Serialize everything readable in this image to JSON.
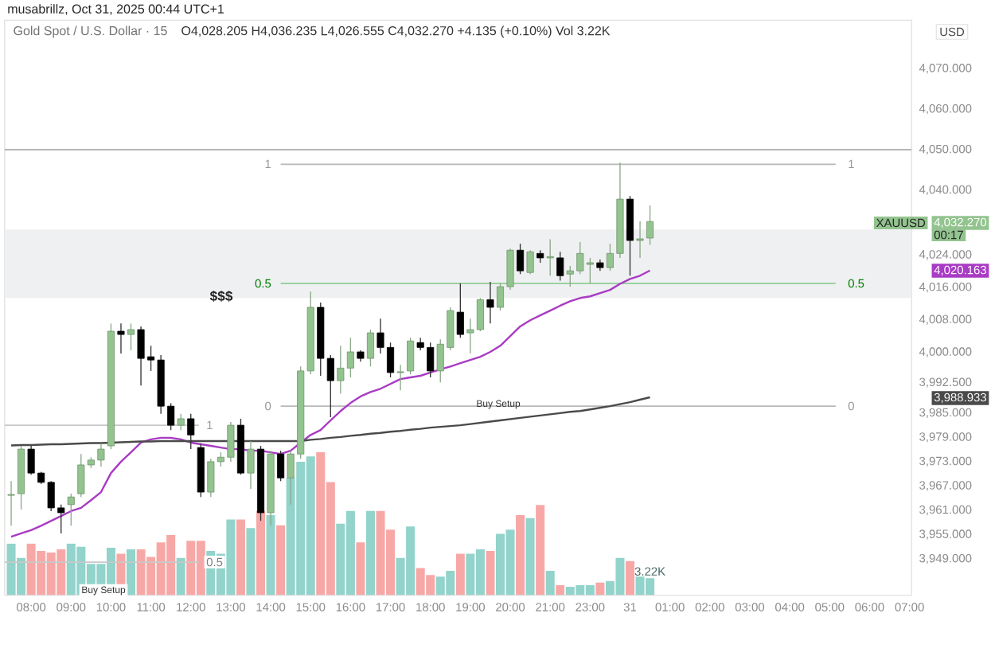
{
  "chart_data": [
    {
      "type": "candlestick",
      "title": "Gold Spot / U.S. Dollar · 15",
      "subtitle": "O4,028.205 H4,036.235 L4,026.555 C4,032.270 +4.135 (+0.10%) Vol 3.22K",
      "ylabel": "USD",
      "categories": [
        null,
        null,
        "08:00",
        null,
        null,
        null,
        "09:00",
        null,
        null,
        null,
        "10:00",
        null,
        null,
        null,
        "11:00",
        null,
        null,
        null,
        "12:00",
        null,
        null,
        null,
        "13:00",
        null,
        null,
        null,
        "14:00",
        null,
        null,
        null,
        "15:00",
        null,
        null,
        null,
        "16:00",
        null,
        null,
        null,
        "17:00",
        null,
        null,
        null,
        "18:00",
        null,
        null,
        null,
        "19:00",
        null,
        null,
        null,
        "20:00",
        null,
        null,
        null,
        "21:00",
        null,
        null,
        null,
        "23:00",
        null,
        null,
        null,
        "31",
        null,
        null,
        null,
        "01:00",
        null,
        null,
        null,
        "02:00",
        null,
        null,
        null,
        "03:00",
        null,
        null,
        null,
        "04:00",
        null,
        null,
        null,
        "05:00",
        null,
        null,
        null,
        "06:00",
        null,
        null,
        null,
        "07:00"
      ],
      "ohlc": [
        [
          3964.7,
          3968.2,
          3957.2,
          3964.9
        ],
        [
          3965.1,
          3976.9,
          3961.2,
          3976.1
        ],
        [
          3976.1,
          3976.9,
          3969.8,
          3970.2
        ],
        [
          3970.2,
          3970.5,
          3967.5,
          3967.9
        ],
        [
          3967.9,
          3968.2,
          3960.8,
          3961.6
        ],
        [
          3961.6,
          3962.4,
          3955.3,
          3960.4
        ],
        [
          3962.4,
          3965.1,
          3957.2,
          3964.3
        ],
        [
          3965.1,
          3974.9,
          3964.3,
          3972.2
        ],
        [
          3972.2,
          3974.1,
          3971.4,
          3973.4
        ],
        [
          3973.4,
          3977.5,
          3971.8,
          3976.1
        ],
        [
          3976.9,
          4007.1,
          3976.1,
          4005.2
        ],
        [
          4005.2,
          4007.1,
          3999.7,
          4004.4
        ],
        [
          4004.4,
          4007.1,
          4000.5,
          4005.6
        ],
        [
          4005.6,
          4006.4,
          3991.8,
          3998.5
        ],
        [
          3998.9,
          4001.6,
          3995.4,
          3998.1
        ],
        [
          3998.1,
          3999.3,
          3984.8,
          3986.7
        ],
        [
          3986.7,
          3987.4,
          3980.8,
          3982.0
        ],
        [
          3982.0,
          3984.8,
          3980.8,
          3983.6
        ],
        [
          3983.6,
          3984.8,
          3976.1,
          3979.6
        ],
        [
          3976.5,
          3977.5,
          3964.3,
          3965.5
        ],
        [
          3965.5,
          3973.7,
          3964.3,
          3973.0
        ],
        [
          3973.0,
          3975.3,
          3971.8,
          3974.1
        ],
        [
          3974.1,
          3982.8,
          3973.0,
          3982.0
        ],
        [
          3982.0,
          3983.6,
          3969.8,
          3970.2
        ],
        [
          3970.2,
          3978.1,
          3966.3,
          3976.1
        ],
        [
          3976.1,
          3976.9,
          3958.4,
          3960.4
        ],
        [
          3960.4,
          3975.7,
          3957.2,
          3974.9
        ],
        [
          3974.9,
          3975.7,
          3968.2,
          3969.0
        ],
        [
          3969.0,
          3975.7,
          3962.4,
          3974.9
        ],
        [
          3974.9,
          3996.5,
          3973.7,
          3995.4
        ],
        [
          3995.4,
          4015.0,
          3994.6,
          4011.1
        ],
        [
          4011.1,
          4012.3,
          3994.2,
          3998.5
        ],
        [
          3998.5,
          3999.3,
          3984.0,
          3993.0
        ],
        [
          3993.0,
          4001.6,
          3989.8,
          3996.1
        ],
        [
          3996.1,
          4003.6,
          3993.8,
          4000.1
        ],
        [
          4000.1,
          4000.5,
          3997.7,
          3998.5
        ],
        [
          3998.5,
          4005.6,
          3996.5,
          4004.8
        ],
        [
          4004.8,
          4008.3,
          3999.7,
          4001.2
        ],
        [
          4001.2,
          4002.4,
          3993.8,
          3995.0
        ],
        [
          3995.0,
          3996.9,
          3990.6,
          3995.2
        ],
        [
          3995.4,
          4003.6,
          3994.6,
          4002.8
        ],
        [
          4002.4,
          4003.6,
          4000.5,
          4001.2
        ],
        [
          4001.2,
          4002.4,
          3993.8,
          3995.4
        ],
        [
          3995.4,
          4003.2,
          3992.6,
          4002.0
        ],
        [
          4001.2,
          4011.1,
          4000.5,
          4010.3
        ],
        [
          4009.9,
          4017.0,
          4003.6,
          4004.4
        ],
        [
          4004.8,
          4008.3,
          3999.7,
          4005.6
        ],
        [
          4005.6,
          4013.4,
          4005.2,
          4013.0
        ],
        [
          4013.0,
          4017.4,
          4007.1,
          4011.1
        ],
        [
          4011.1,
          4017.0,
          4010.3,
          4016.2
        ],
        [
          4016.2,
          4025.6,
          4015.4,
          4025.2
        ],
        [
          4025.2,
          4026.8,
          4019.3,
          4020.1
        ],
        [
          4019.7,
          4025.2,
          4019.3,
          4024.8
        ],
        [
          4024.4,
          4025.2,
          4022.1,
          4023.3
        ],
        [
          4023.3,
          4027.9,
          4018.9,
          4023.6
        ],
        [
          4023.3,
          4024.8,
          4017.7,
          4018.9
        ],
        [
          4019.3,
          4021.3,
          4016.2,
          4020.1
        ],
        [
          4020.1,
          4027.2,
          4019.3,
          4024.4
        ],
        [
          4021.7,
          4023.3,
          4017.0,
          4022.1
        ],
        [
          4022.1,
          4022.9,
          4020.1,
          4020.9
        ],
        [
          4020.9,
          4026.8,
          4020.1,
          4024.4
        ],
        [
          4024.4,
          4046.8,
          4023.3,
          4037.8
        ],
        [
          4037.8,
          4038.6,
          4018.9,
          4027.6
        ],
        [
          4027.6,
          4032.3,
          4023.3,
          4028.0
        ],
        [
          4028.205,
          4036.235,
          4026.555,
          4032.27
        ],
        null,
        null,
        null,
        null,
        null,
        null,
        null,
        null,
        null,
        null,
        null,
        null,
        null,
        null,
        null,
        null,
        null,
        null,
        null,
        null,
        null,
        null,
        null,
        null,
        null,
        null
      ],
      "colors": [
        "#93c48f",
        "#93c48f",
        "#000000",
        "#000000",
        "#000000",
        "#000000",
        "#93c48f",
        "#93c48f",
        "#93c48f",
        "#93c48f",
        "#93c48f",
        "#000000",
        "#93c48f",
        "#000000",
        "#000000",
        "#000000",
        "#000000",
        "#93c48f",
        "#000000",
        "#000000",
        "#93c48f",
        "#93c48f",
        "#93c48f",
        "#000000",
        "#93c48f",
        "#000000",
        "#93c48f",
        "#000000",
        "#93c48f",
        "#93c48f",
        "#93c48f",
        "#000000",
        "#000000",
        "#93c48f",
        "#93c48f",
        "#000000",
        "#93c48f",
        "#000000",
        "#000000",
        "#93c48f",
        "#93c48f",
        "#000000",
        "#000000",
        "#93c48f",
        "#93c48f",
        "#000000",
        "#93c48f",
        "#93c48f",
        "#000000",
        "#93c48f",
        "#93c48f",
        "#000000",
        "#93c48f",
        "#000000",
        "#93c48f",
        "#000000",
        "#93c48f",
        "#93c48f",
        "#93c48f",
        "#000000",
        "#93c48f",
        "#93c48f",
        "#000000",
        "#93c48f",
        "#93c48f",
        null,
        null,
        null,
        null,
        null,
        null,
        null,
        null,
        null,
        null,
        null,
        null,
        null,
        null,
        null,
        null,
        null,
        null,
        null,
        null,
        null,
        null,
        null,
        null,
        null,
        null
      ],
      "series": [
        {
          "type": "line",
          "color": "#a93bc4",
          "values": [
            3954.5,
            3955.3,
            3956.1,
            3957.2,
            3958.4,
            3959.6,
            3960.8,
            3961.6,
            3963.5,
            3965.5,
            3970.2,
            3973.0,
            3975.3,
            3977.7,
            3978.5,
            3978.9,
            3978.9,
            3978.5,
            3977.7,
            3977.3,
            3976.9,
            3976.5,
            3976.1,
            3976.1,
            3975.7,
            3975.7,
            3975.3,
            3974.9,
            3975.7,
            3977.7,
            3979.6,
            3980.8,
            3983.2,
            3985.5,
            3987.5,
            3989.1,
            3990.2,
            3991.0,
            3992.2,
            3993.4,
            3993.8,
            3994.2,
            3995.0,
            3995.8,
            3996.5,
            3997.3,
            3998.1,
            3998.9,
            4000.1,
            4001.6,
            4004.0,
            4006.4,
            4007.9,
            4009.1,
            4010.3,
            4011.5,
            4012.6,
            4013.4,
            4013.8,
            4014.6,
            4015.4,
            4016.9,
            4018.1,
            4018.9,
            4020.2,
            null,
            null,
            null,
            null,
            null,
            null,
            null,
            null,
            null,
            null,
            null,
            null,
            null,
            null,
            null,
            null,
            null,
            null,
            null,
            null,
            null,
            null,
            null,
            null,
            null,
            null
          ]
        },
        {
          "type": "line",
          "color": "#4a4a4a",
          "values": [
            3977.0,
            3977.1,
            3977.1,
            3977.2,
            3977.3,
            3977.3,
            3977.4,
            3977.5,
            3977.6,
            3977.6,
            3977.7,
            3977.8,
            3977.9,
            3978.0,
            3978.0,
            3978.1,
            3978.1,
            3978.1,
            3978.1,
            3978.1,
            3978.1,
            3978.1,
            3978.1,
            3978.1,
            3978.1,
            3978.1,
            3978.1,
            3978.1,
            3978.1,
            3978.1,
            3978.4,
            3978.6,
            3978.9,
            3979.1,
            3979.4,
            3979.6,
            3979.9,
            3980.1,
            3980.4,
            3980.6,
            3980.9,
            3981.1,
            3981.4,
            3981.6,
            3981.8,
            3982.0,
            3982.3,
            3982.6,
            3982.9,
            3983.2,
            3983.5,
            3983.8,
            3984.1,
            3984.4,
            3984.7,
            3985.0,
            3985.3,
            3985.5,
            3985.9,
            3986.3,
            3986.7,
            3987.2,
            3987.7,
            3988.3,
            3988.9,
            null,
            null,
            null,
            null,
            null,
            null,
            null,
            null,
            null,
            null,
            null,
            null,
            null,
            null,
            null,
            null,
            null,
            null,
            null,
            null,
            null,
            null,
            null,
            null,
            null,
            null
          ]
        }
      ],
      "ylim": [
        3940,
        4082
      ],
      "yticks": [
        {
          "value": 3949,
          "label": "3,949.000"
        },
        {
          "value": 3955,
          "label": "3,955.000"
        },
        {
          "value": 3961,
          "label": "3,961.000"
        },
        {
          "value": 3967,
          "label": "3,967.000"
        },
        {
          "value": 3973,
          "label": "3,973.000"
        },
        {
          "value": 3979,
          "label": "3,979.000"
        },
        {
          "value": 3985,
          "label": "3,985.000"
        },
        {
          "value": 3992.5,
          "label": "3,992.500"
        },
        {
          "value": 4000,
          "label": "4,000.000"
        },
        {
          "value": 4008,
          "label": "4,008.000"
        },
        {
          "value": 4016,
          "label": "4,016.000"
        },
        {
          "value": 4024,
          "label": "4,024.000"
        },
        {
          "value": 4040,
          "label": "4,040.000"
        },
        {
          "value": 4050,
          "label": "4,050.000"
        },
        {
          "value": 4060,
          "label": "4,060.000"
        },
        {
          "value": 4070,
          "label": "4,070.000"
        }
      ],
      "ref_lines": [
        {
          "axis": "y",
          "value": 4050,
          "color": "#9e9e9e"
        },
        {
          "axis": "y",
          "value": 4046.4,
          "color": "#b8b8b8"
        },
        {
          "axis": "y",
          "value": 4017.0,
          "color": "#81c784"
        },
        {
          "axis": "y",
          "value": 3986.7,
          "color": "#b8b8b8"
        },
        {
          "axis": "y",
          "value": 3982.0,
          "color": "#c8c8c8"
        },
        {
          "axis": "y",
          "value": 3948.2,
          "color": "#c8c8c8"
        }
      ],
      "bands": [
        {
          "axis": "y",
          "from": 4013.4,
          "to": 4030.3,
          "color": "#eff0f2"
        }
      ],
      "annotations": [
        "musabrillz, Oct 31, 2025 00:44 UTC+1",
        "$$$",
        "Buy Setup",
        "Buy Setup",
        "XAUUSD",
        "4,032.270",
        "00:17",
        "4,020.163",
        "3,988.933",
        "1",
        "1",
        "0.5",
        "0.5",
        "0",
        "0",
        "1",
        "0.5"
      ]
    },
    {
      "type": "bar",
      "ylim": [
        0,
        26.8
      ],
      "values": [
        9.7,
        7.0,
        9.7,
        8.3,
        8.0,
        8.6,
        9.7,
        9.1,
        5.9,
        5.9,
        8.9,
        7.8,
        8.6,
        8.6,
        7.2,
        9.9,
        11.3,
        7.0,
        10.2,
        10.2,
        8.3,
        7.8,
        14.2,
        14.2,
        12.6,
        15.8,
        15.0,
        13.1,
        22.0,
        25.0,
        26.0,
        26.8,
        21.2,
        13.4,
        15.8,
        9.9,
        15.8,
        15.8,
        12.3,
        7.0,
        12.9,
        5.1,
        3.8,
        3.5,
        4.6,
        7.8,
        7.8,
        8.6,
        8.3,
        11.5,
        12.3,
        15.0,
        14.5,
        16.9,
        4.6,
        1.9,
        1.6,
        1.9,
        1.9,
        2.4,
        2.7,
        7.0,
        6.4,
        3.5,
        3.22,
        null,
        null,
        null,
        null,
        null,
        null,
        null,
        null,
        null,
        null,
        null,
        null,
        null,
        null,
        null,
        null,
        null,
        null,
        null,
        null,
        null,
        null,
        null,
        null,
        null,
        null
      ],
      "colors": [
        "#92d3cb",
        "#92d3cb",
        "#f7a8a6",
        "#f7a8a6",
        "#f7a8a6",
        "#f7a8a6",
        "#92d3cb",
        "#92d3cb",
        "#92d3cb",
        "#92d3cb",
        "#92d3cb",
        "#f7a8a6",
        "#92d3cb",
        "#f7a8a6",
        "#f7a8a6",
        "#f7a8a6",
        "#f7a8a6",
        "#92d3cb",
        "#f7a8a6",
        "#f7a8a6",
        "#92d3cb",
        "#92d3cb",
        "#92d3cb",
        "#f7a8a6",
        "#92d3cb",
        "#f7a8a6",
        "#92d3cb",
        "#f7a8a6",
        "#92d3cb",
        "#92d3cb",
        "#92d3cb",
        "#f7a8a6",
        "#f7a8a6",
        "#92d3cb",
        "#92d3cb",
        "#f7a8a6",
        "#92d3cb",
        "#f7a8a6",
        "#f7a8a6",
        "#92d3cb",
        "#92d3cb",
        "#f7a8a6",
        "#f7a8a6",
        "#92d3cb",
        "#92d3cb",
        "#f7a8a6",
        "#92d3cb",
        "#92d3cb",
        "#f7a8a6",
        "#92d3cb",
        "#92d3cb",
        "#f7a8a6",
        "#92d3cb",
        "#f7a8a6",
        "#92d3cb",
        "#f7a8a6",
        "#92d3cb",
        "#92d3cb",
        "#92d3cb",
        "#f7a8a6",
        "#92d3cb",
        "#92d3cb",
        "#f7a8a6",
        "#92d3cb",
        "#92d3cb",
        null,
        null,
        null,
        null,
        null,
        null,
        null,
        null,
        null,
        null,
        null,
        null,
        null,
        null,
        null,
        null,
        null,
        null,
        null,
        null,
        null,
        null,
        null,
        null,
        null,
        null
      ],
      "value_labels": [
        null,
        null,
        null,
        null,
        null,
        null,
        null,
        null,
        null,
        null,
        null,
        null,
        null,
        null,
        null,
        null,
        null,
        null,
        null,
        null,
        null,
        null,
        null,
        null,
        null,
        null,
        null,
        null,
        null,
        null,
        null,
        null,
        null,
        null,
        null,
        null,
        null,
        null,
        null,
        null,
        null,
        null,
        null,
        null,
        null,
        null,
        null,
        null,
        null,
        null,
        null,
        null,
        null,
        null,
        null,
        null,
        null,
        null,
        null,
        null,
        null,
        null,
        null,
        null,
        "3.22K",
        null,
        null,
        null,
        null,
        null,
        null,
        null,
        null,
        null,
        null,
        null,
        null,
        null,
        null,
        null,
        null,
        null,
        null,
        null,
        null,
        null,
        null,
        null,
        null,
        null,
        null
      ]
    }
  ]
}
